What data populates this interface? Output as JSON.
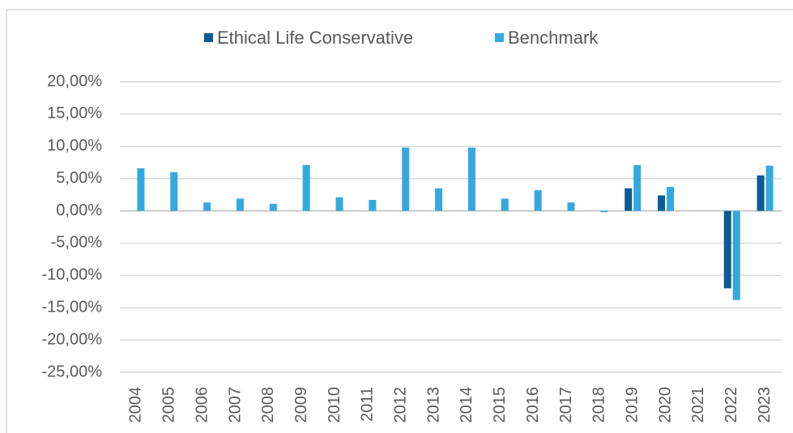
{
  "chart_data": {
    "type": "bar",
    "categories": [
      "2004",
      "2005",
      "2006",
      "2007",
      "2008",
      "2009",
      "2010",
      "2011",
      "2012",
      "2013",
      "2014",
      "2015",
      "2016",
      "2017",
      "2018",
      "2019",
      "2020",
      "2021",
      "2022",
      "2023"
    ],
    "series": [
      {
        "name": "Ethical Life Conservative",
        "color": "#0c5a96",
        "values": [
          null,
          null,
          null,
          null,
          null,
          null,
          null,
          null,
          null,
          null,
          null,
          null,
          null,
          null,
          null,
          3.5,
          2.4,
          null,
          -12.0,
          5.5
        ]
      },
      {
        "name": "Benchmark",
        "color": "#33a9e0",
        "values": [
          6.6,
          6.0,
          1.3,
          1.9,
          1.1,
          7.1,
          2.1,
          1.7,
          9.8,
          3.5,
          9.8,
          1.9,
          3.2,
          1.3,
          -0.2,
          7.1,
          3.7,
          null,
          -13.8,
          7.0
        ]
      }
    ],
    "ylim": [
      -25,
      20
    ],
    "yticks": [
      {
        "value": -25,
        "label": "-25,00%"
      },
      {
        "value": -20,
        "label": "-20,00%"
      },
      {
        "value": -15,
        "label": "-15,00%"
      },
      {
        "value": -10,
        "label": "-10,00%"
      },
      {
        "value": -5,
        "label": "-5,00%"
      },
      {
        "value": 0,
        "label": "0,00%"
      },
      {
        "value": 5,
        "label": "5,00%"
      },
      {
        "value": 10,
        "label": "10,00%"
      },
      {
        "value": 15,
        "label": "15,00%"
      },
      {
        "value": 20,
        "label": "20,00%"
      }
    ],
    "grid": true,
    "legend": "top"
  }
}
